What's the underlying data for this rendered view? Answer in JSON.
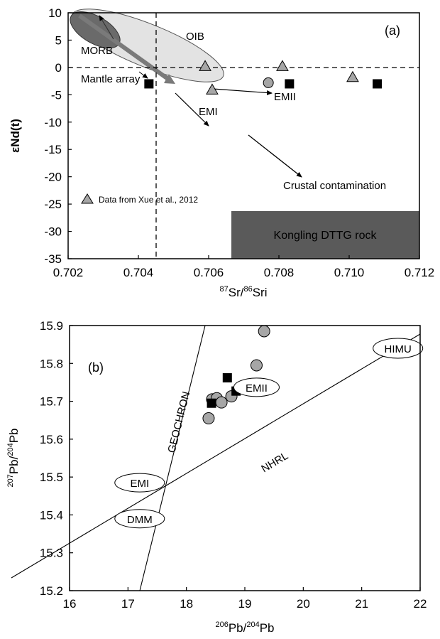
{
  "chart_data": [
    {
      "type": "scatter",
      "panel_label": "(a)",
      "xlabel_parts": [
        "87",
        "Sr/",
        "86",
        "Sri"
      ],
      "ylabel": "εNd(t)",
      "xlim": [
        0.702,
        0.712
      ],
      "ylim": [
        -35,
        10
      ],
      "xticks": [
        "0.702",
        "0.704",
        "0.706",
        "0.708",
        "0.710",
        "0.712"
      ],
      "yticks": [
        "10",
        "5",
        "0",
        "-5",
        "-10",
        "-15",
        "-20",
        "-25",
        "-30",
        "-35"
      ],
      "squares": [
        [
          0.7043,
          -3
        ],
        [
          0.7083,
          -3
        ],
        [
          0.7108,
          -3
        ]
      ],
      "circles": [
        [
          0.7077,
          -2.8
        ]
      ],
      "triangles": [
        [
          0.7059,
          0.2
        ],
        [
          0.7061,
          -4.1
        ],
        [
          0.7081,
          0.2
        ],
        [
          0.7101,
          -1.8
        ]
      ],
      "labels": {
        "oib": "OIB",
        "morb": "MORB",
        "mantle_array": "Mantle array",
        "emii": "EMII",
        "emi": "EMI",
        "crustal": "Crustal contamination",
        "source": "Data from Xue et al., 2012",
        "kongling": "Kongling DTTG rock"
      },
      "colors": {
        "oib_fill": "#e3e3e3",
        "morb_fill": "#6a6a6a",
        "kongling_fill": "#5a5a5a",
        "symbol_gray": "#a6a6a6",
        "square": "#000000"
      }
    },
    {
      "type": "scatter",
      "panel_label": "(b)",
      "xlabel_parts": [
        "206",
        "Pb/",
        "204",
        "Pb"
      ],
      "ylabel_parts": [
        "207",
        "Pb/",
        "204",
        "Pb"
      ],
      "xlim": [
        16,
        22
      ],
      "ylim": [
        15.2,
        15.9
      ],
      "xticks": [
        "16",
        "17",
        "18",
        "19",
        "20",
        "21",
        "22"
      ],
      "yticks": [
        "15.9",
        "15.8",
        "15.7",
        "15.6",
        "15.5",
        "15.4",
        "15.3",
        "15.2"
      ],
      "circles": [
        [
          19.33,
          15.885
        ],
        [
          19.2,
          15.795
        ],
        [
          18.38,
          15.655
        ],
        [
          18.44,
          15.705
        ],
        [
          18.52,
          15.708
        ],
        [
          18.6,
          15.697
        ],
        [
          18.77,
          15.713
        ]
      ],
      "squares": [
        [
          18.43,
          15.695
        ],
        [
          18.7,
          15.762
        ],
        [
          18.85,
          15.727
        ]
      ],
      "lines": {
        "geochron": {
          "label": "GEOCHRON",
          "from": [
            17.2,
            15.2
          ],
          "to": [
            18.4,
            15.9
          ]
        },
        "nhrl": {
          "label": "NHRL",
          "from": [
            16,
            15.232
          ],
          "to": [
            22,
            15.872
          ]
        }
      },
      "end_members": [
        {
          "label": "HIMU",
          "x": 21.62,
          "y": 15.84
        },
        {
          "label": "EMII",
          "x": 19.2,
          "y": 15.737
        },
        {
          "label": "EMI",
          "x": 17.2,
          "y": 15.485
        },
        {
          "label": "DMM",
          "x": 17.2,
          "y": 15.39
        }
      ],
      "colors": {
        "symbol_gray": "#a6a6a6",
        "square": "#000000"
      }
    }
  ]
}
